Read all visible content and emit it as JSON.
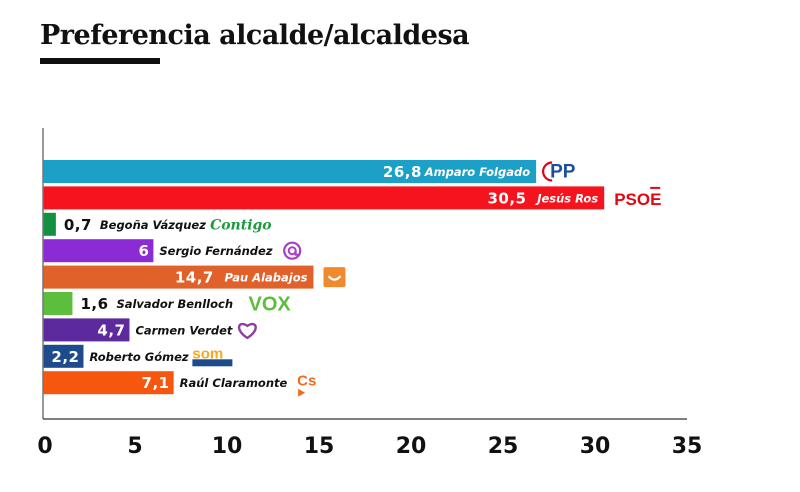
{
  "chart_data": {
    "type": "bar",
    "orientation": "horizontal",
    "title": "Preferencia alcalde/alcaldesa",
    "categories": [
      "Amparo Folgado",
      "Jesús Ros",
      "Begoña Vázquez",
      "Sergio Fernández",
      "Pau Alabajos",
      "Salvador Benlloch",
      "Carmen Verdet",
      "Roberto Gómez",
      "Raúl Claramonte"
    ],
    "values": [
      26.8,
      30.5,
      0.7,
      6,
      14.7,
      1.6,
      4.7,
      2.2,
      7.1
    ],
    "value_labels": [
      "26,8",
      "30,5",
      "0,7",
      "6",
      "14,7",
      "1,6",
      "4,7",
      "2,2",
      "7,1"
    ],
    "colors": [
      "#1ca0c7",
      "#f5141e",
      "#139140",
      "#8a2bd6",
      "#e0612a",
      "#5cbf3c",
      "#5c2a9d",
      "#1d4b8c",
      "#f7560f"
    ],
    "party_logos": [
      "PP",
      "PSOE",
      "Contigo",
      "Podemos",
      "Compromís",
      "VOX",
      "Unides",
      "Som Valencians",
      "Cs"
    ],
    "party_logo_icons": [
      "pp-logo-icon",
      "psoe-logo-icon",
      "contigo-logo-icon",
      "podemos-logo-icon",
      "compromis-logo-icon",
      "vox-logo-icon",
      "heart-logo-icon",
      "som-valencians-logo-icon",
      "cs-logo-icon"
    ],
    "xlim": [
      0,
      35
    ],
    "xticks": [
      0,
      5,
      10,
      15,
      20,
      25,
      30,
      35
    ],
    "xtick_labels": [
      "0",
      "5",
      "10",
      "15",
      "20",
      "25",
      "30",
      "35"
    ],
    "xlabel": "",
    "ylabel": "",
    "grid": false,
    "legend": "none"
  }
}
